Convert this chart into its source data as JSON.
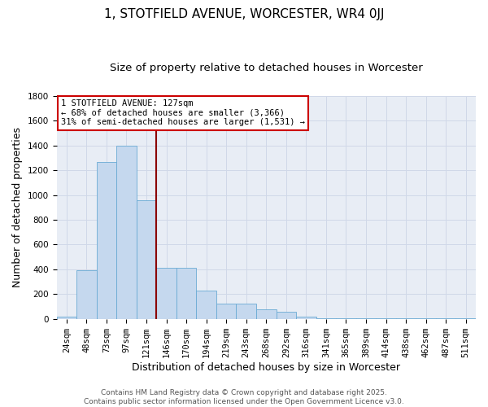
{
  "title1": "1, STOTFIELD AVENUE, WORCESTER, WR4 0JJ",
  "title2": "Size of property relative to detached houses in Worcester",
  "xlabel": "Distribution of detached houses by size in Worcester",
  "ylabel": "Number of detached properties",
  "categories": [
    "24sqm",
    "48sqm",
    "73sqm",
    "97sqm",
    "121sqm",
    "146sqm",
    "170sqm",
    "194sqm",
    "219sqm",
    "243sqm",
    "268sqm",
    "292sqm",
    "316sqm",
    "341sqm",
    "365sqm",
    "389sqm",
    "414sqm",
    "438sqm",
    "462sqm",
    "487sqm",
    "511sqm"
  ],
  "values": [
    20,
    390,
    1265,
    1400,
    960,
    415,
    415,
    230,
    125,
    125,
    75,
    55,
    20,
    5,
    5,
    5,
    5,
    5,
    5,
    2,
    2
  ],
  "bar_color": "#c5d8ee",
  "bar_edge_color": "#6aaad4",
  "vline_color": "#8b0000",
  "annotation_title": "1 STOTFIELD AVENUE: 127sqm",
  "annotation_line1": "← 68% of detached houses are smaller (3,366)",
  "annotation_line2": "31% of semi-detached houses are larger (1,531) →",
  "annotation_box_color": "#cc0000",
  "ylim": [
    0,
    1800
  ],
  "yticks": [
    0,
    200,
    400,
    600,
    800,
    1000,
    1200,
    1400,
    1600,
    1800
  ],
  "grid_color": "#d0d8e8",
  "bg_color": "#e8edf5",
  "footer1": "Contains HM Land Registry data © Crown copyright and database right 2025.",
  "footer2": "Contains public sector information licensed under the Open Government Licence v3.0.",
  "title1_fontsize": 11,
  "title2_fontsize": 9.5,
  "xlabel_fontsize": 9,
  "ylabel_fontsize": 9,
  "tick_fontsize": 7.5,
  "footer_fontsize": 6.5,
  "vline_index": 4
}
